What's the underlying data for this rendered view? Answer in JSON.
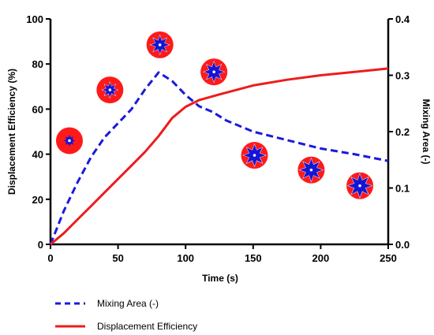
{
  "chart_data": {
    "type": "line",
    "xlabel": "Time (s)",
    "ylabel_left": "Displacement Efficiency (%)",
    "ylabel_right": "Mixing Area (-)",
    "xlim": [
      0,
      250
    ],
    "ylim_left": [
      0,
      100
    ],
    "ylim_right": [
      0,
      0.4
    ],
    "x_ticks": [
      "0",
      "50",
      "100",
      "150",
      "200",
      "250"
    ],
    "y_ticks_left": [
      "0",
      "20",
      "40",
      "60",
      "80",
      "100"
    ],
    "y_ticks_right": [
      "0.0",
      "0.1",
      "0.2",
      "0.3",
      "0.4"
    ],
    "grid": false,
    "legend_position": "bottom-left",
    "series": [
      {
        "name": "Mixing Area (-)",
        "axis": "right",
        "style": "dashed",
        "color": "#1a1adc",
        "x": [
          0,
          10,
          20,
          30,
          40,
          50,
          60,
          70,
          80,
          90,
          100,
          110,
          120,
          130,
          140,
          150,
          175,
          200,
          225,
          250
        ],
        "y": [
          0.0,
          0.06,
          0.11,
          0.155,
          0.19,
          0.215,
          0.24,
          0.275,
          0.305,
          0.29,
          0.265,
          0.245,
          0.235,
          0.22,
          0.21,
          0.2,
          0.185,
          0.17,
          0.16,
          0.148
        ]
      },
      {
        "name": "Displacement  Efficiency",
        "axis": "left",
        "style": "solid",
        "color": "#ee1c1c",
        "x": [
          0,
          10,
          20,
          30,
          40,
          50,
          60,
          70,
          80,
          90,
          100,
          110,
          125,
          150,
          175,
          200,
          225,
          250
        ],
        "y": [
          0,
          5,
          11,
          17,
          23,
          29,
          35,
          41,
          48,
          56,
          61,
          64,
          66.5,
          70.5,
          73,
          75,
          76.5,
          78
        ]
      }
    ],
    "snapshots": [
      {
        "time": 14,
        "efficiency": 46,
        "level": 0.15
      },
      {
        "time": 44,
        "efficiency": 68.5,
        "level": 0.35
      },
      {
        "time": 81,
        "efficiency": 88.5,
        "level": 0.55
      },
      {
        "time": 121,
        "efficiency": 76.5,
        "level": 0.65
      },
      {
        "time": 151,
        "efficiency": 39.5,
        "level": 0.75
      },
      {
        "time": 193,
        "efficiency": 33,
        "level": 0.8
      },
      {
        "time": 229,
        "efficiency": 26,
        "level": 0.85
      }
    ],
    "colors": {
      "mixing": "#1a1adc",
      "efficiency": "#ee1c1c",
      "snapshot_fill": "#ff1a1a",
      "snapshot_blue": "#1515d6",
      "snapshot_white": "#f4f4f4"
    }
  }
}
